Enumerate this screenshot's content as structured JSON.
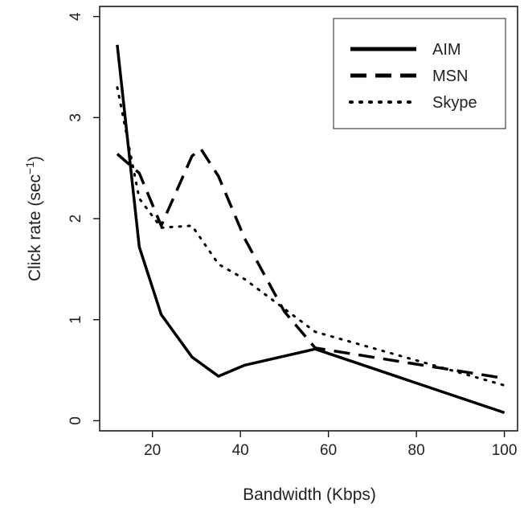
{
  "chart_data": {
    "type": "line",
    "title": "",
    "xlabel": "Bandwidth (Kbps)",
    "ylabel": "Click rate (sec",
    "ylabel_sup": "−1",
    "ylabel_close": ")",
    "xlim": [
      8,
      103
    ],
    "ylim": [
      -0.1,
      4.1
    ],
    "x_ticks": [
      20,
      40,
      60,
      80,
      100
    ],
    "y_ticks": [
      0,
      1,
      2,
      3,
      4
    ],
    "x_tick_labels": [
      "20",
      "40",
      "60",
      "80",
      "100"
    ],
    "y_tick_labels": [
      "0",
      "1",
      "2",
      "3",
      "4"
    ],
    "grid": false,
    "legend_position": "top-right",
    "series": [
      {
        "name": "AIM",
        "style": "solid",
        "color": "#000000",
        "x": [
          12,
          17,
          22,
          29,
          35,
          41,
          57,
          100
        ],
        "y": [
          3.72,
          1.72,
          1.05,
          0.63,
          0.44,
          0.55,
          0.71,
          0.08
        ]
      },
      {
        "name": "MSN",
        "style": "dashed",
        "color": "#000000",
        "x": [
          12,
          17,
          22,
          29,
          31,
          35,
          41,
          50,
          57,
          100
        ],
        "y": [
          2.64,
          2.45,
          1.93,
          2.62,
          2.69,
          2.42,
          1.8,
          1.08,
          0.72,
          0.42
        ]
      },
      {
        "name": "Skype",
        "style": "dotted",
        "color": "#000000",
        "x": [
          12,
          17,
          22,
          29,
          35,
          41,
          57,
          100
        ],
        "y": [
          3.3,
          2.2,
          1.91,
          1.93,
          1.55,
          1.4,
          0.88,
          0.35
        ]
      }
    ]
  }
}
